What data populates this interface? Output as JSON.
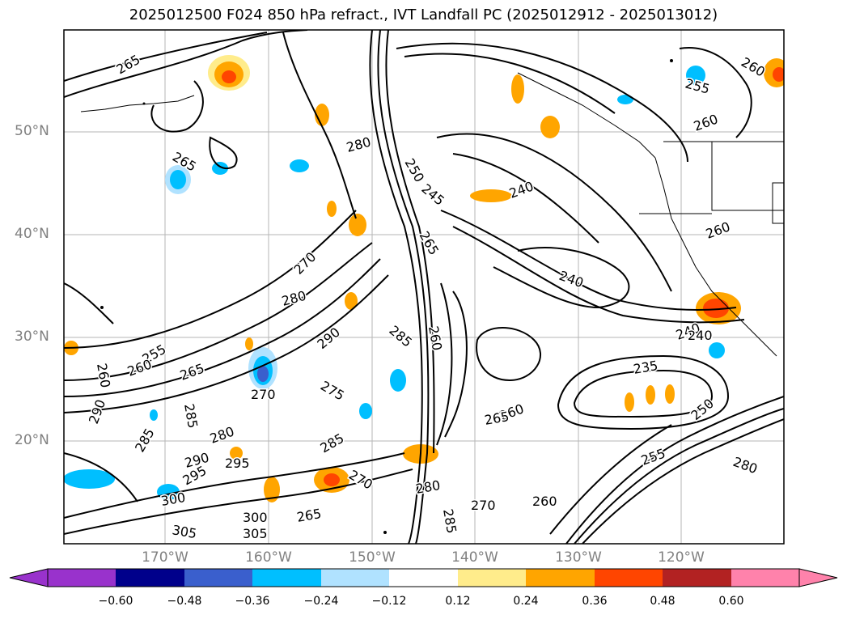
{
  "title": "2025012500 F024 850 hPa refract., IVT Landfall PC (2025012912 - 2025013012)",
  "lon_labels": [
    "170°W",
    "160°W",
    "150°W",
    "140°W",
    "130°W",
    "120°W"
  ],
  "lat_labels": [
    "50°N",
    "40°N",
    "30°N",
    "20°N"
  ],
  "contour_labels": [
    "265",
    "265",
    "280",
    "250",
    "245",
    "240",
    "260",
    "255",
    "260",
    "260",
    "265",
    "240",
    "270",
    "280",
    "260",
    "240",
    "235",
    "290",
    "275",
    "285",
    "260",
    "255",
    "260",
    "265",
    "285",
    "270",
    "290",
    "280",
    "295",
    "285",
    "300",
    "305",
    "285",
    "270",
    "280",
    "270",
    "260",
    "285",
    "265",
    "260",
    "290",
    "305",
    "300",
    "295",
    "280",
    "250",
    "255",
    "240",
    "265"
  ],
  "colorbar": {
    "ticks": [
      "−0.60",
      "−0.48",
      "−0.36",
      "−0.24",
      "−0.12",
      "0.12",
      "0.24",
      "0.36",
      "0.48",
      "0.60"
    ],
    "colors": [
      "#9932CC",
      "#00008B",
      "#3A5FCD",
      "#00BFFF",
      "#B0E2FF",
      "#FFFFFF",
      "#FFEC8B",
      "#FFA500",
      "#FF4500",
      "#B22222",
      "#FF82AB"
    ]
  }
}
